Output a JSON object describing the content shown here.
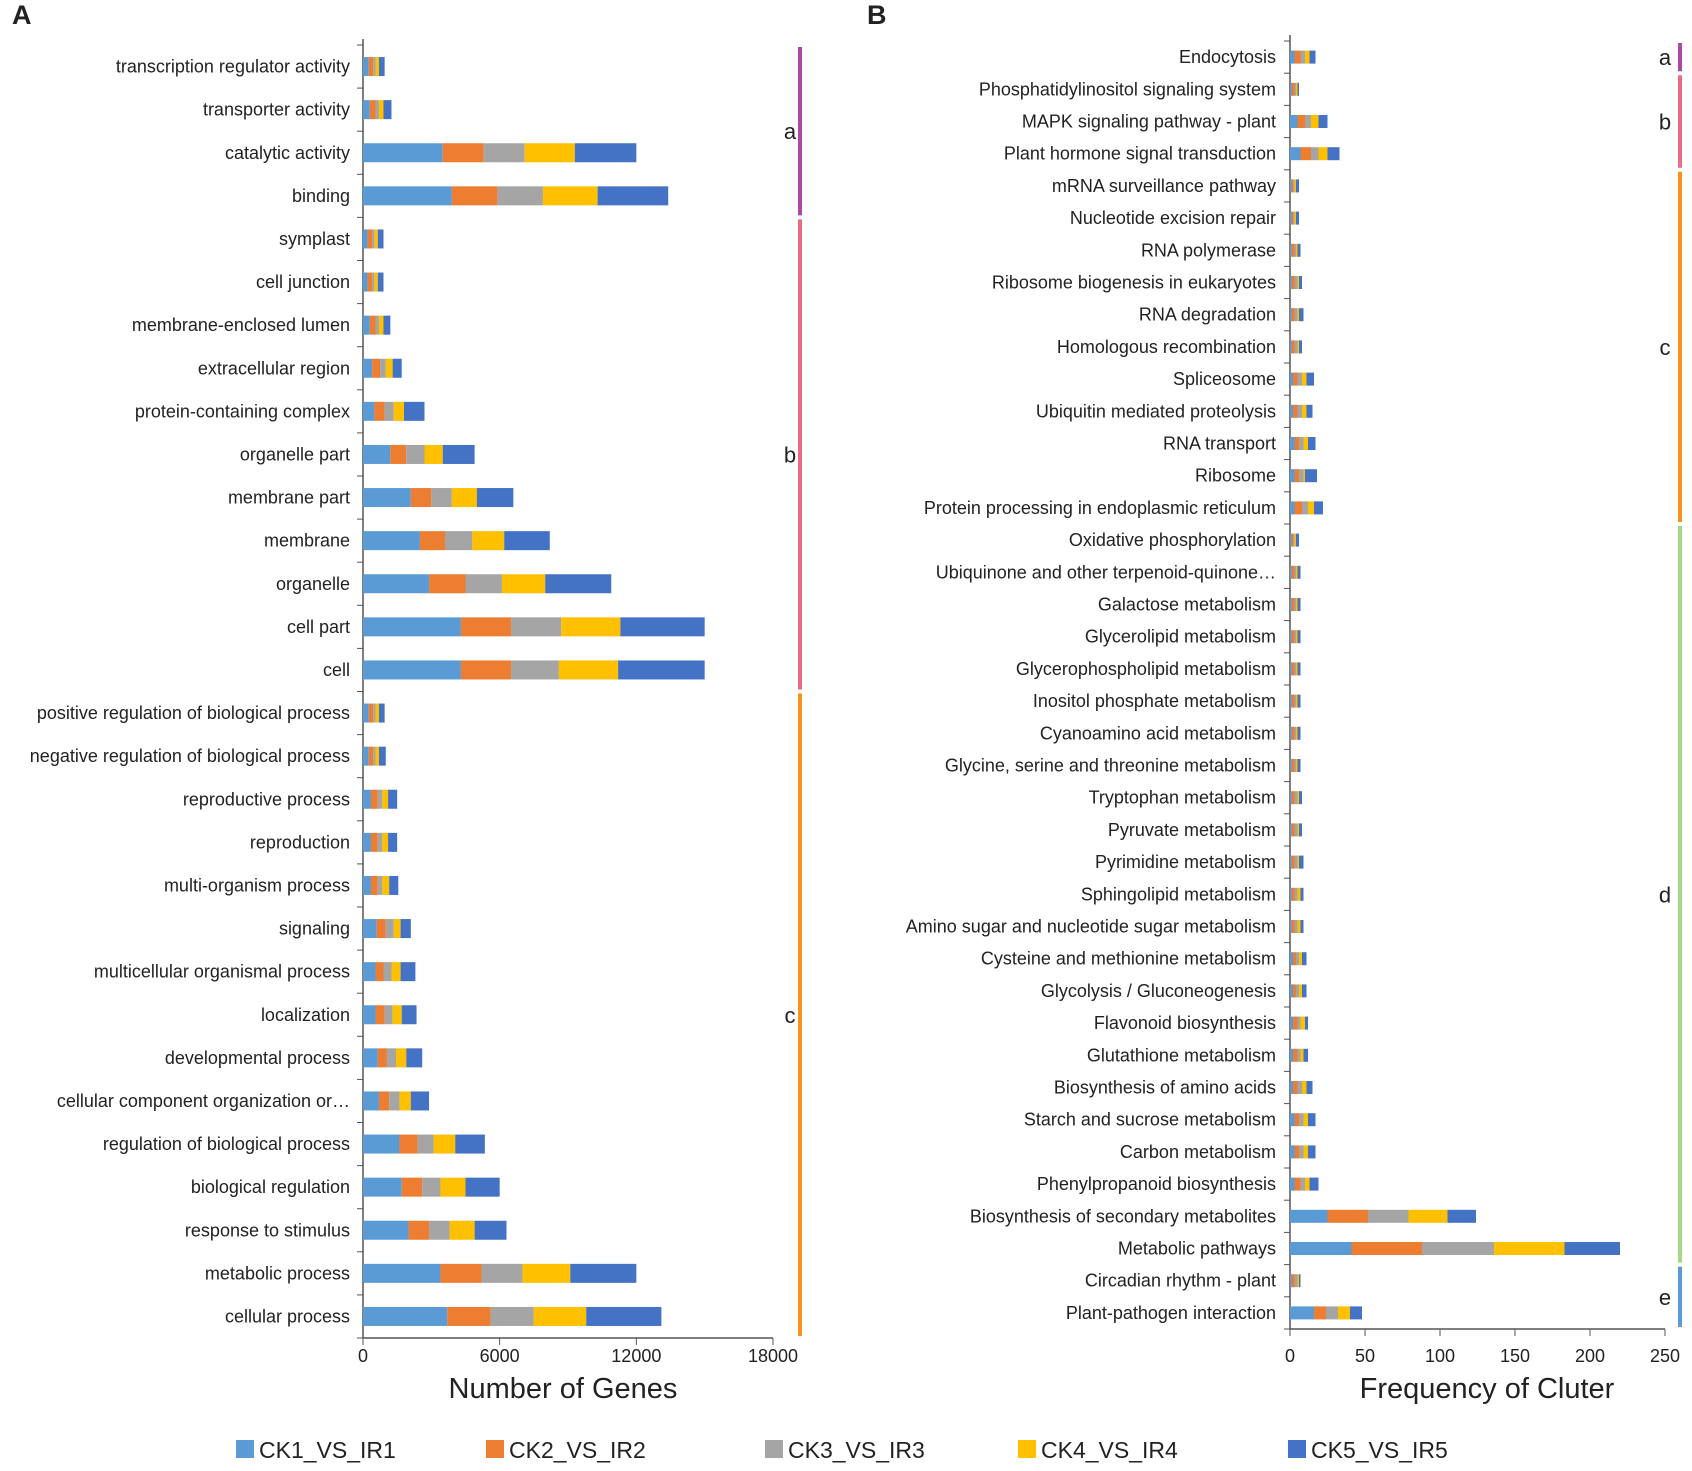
{
  "legend": [
    {
      "name": "CK1_VS_IR1",
      "color": "#5B9BD5"
    },
    {
      "name": "CK2_VS_IR2",
      "color": "#ED7D31"
    },
    {
      "name": "CK3_VS_IR3",
      "color": "#A5A5A5"
    },
    {
      "name": "CK4_VS_IR4",
      "color": "#FFC000"
    },
    {
      "name": "CK5_VS_IR5",
      "color": "#4472C4"
    }
  ],
  "chart_data": [
    {
      "panel": "A",
      "type": "bar",
      "orientation": "horizontal",
      "stacked": true,
      "xlabel": "Number of Genes",
      "xlim": [
        0,
        18000
      ],
      "xticks": [
        "0",
        "6000",
        "12000",
        "18000"
      ],
      "categories": [
        "transcription regulator activity",
        "transporter activity",
        "catalytic activity",
        "binding",
        "symplast",
        "cell junction",
        "membrane-enclosed lumen",
        "extracellular region",
        "protein-containing complex",
        "organelle part",
        "membrane part",
        "membrane",
        "organelle",
        "cell part",
        "cell",
        "positive regulation of biological process",
        "negative regulation of biological process",
        "reproductive process",
        "reproduction",
        "multi-organism process",
        "signaling",
        "multicellular organismal process",
        "localization",
        "developmental process",
        "cellular component organization or…",
        "regulation of biological process",
        "biological regulation",
        "response to stimulus",
        "metabolic process",
        "cellular process"
      ],
      "series": [
        {
          "name": "CK1_VS_IR1",
          "color": "#5B9BD5",
          "values": [
            250,
            300,
            3500,
            3900,
            200,
            200,
            300,
            400,
            500,
            1200,
            2100,
            2500,
            2900,
            4300,
            4300,
            250,
            250,
            350,
            350,
            350,
            600,
            550,
            550,
            650,
            700,
            1600,
            1700,
            2000,
            3400,
            3700
          ]
        },
        {
          "name": "CK2_VS_IR2",
          "color": "#ED7D31",
          "values": [
            200,
            250,
            1800,
            2000,
            200,
            200,
            250,
            350,
            450,
            700,
            900,
            1100,
            1600,
            2200,
            2200,
            200,
            200,
            300,
            300,
            300,
            400,
            350,
            400,
            400,
            450,
            800,
            900,
            900,
            1800,
            1900
          ]
        },
        {
          "name": "CK3_VS_IR3",
          "color": "#A5A5A5",
          "values": [
            100,
            150,
            1800,
            2000,
            100,
            100,
            150,
            250,
            400,
            800,
            900,
            1200,
            1600,
            2200,
            2100,
            100,
            100,
            200,
            200,
            200,
            350,
            350,
            350,
            400,
            450,
            700,
            800,
            900,
            1800,
            1900
          ]
        },
        {
          "name": "CK4_VS_IR4",
          "color": "#FFC000",
          "values": [
            150,
            200,
            2200,
            2400,
            150,
            150,
            200,
            300,
            450,
            800,
            1100,
            1400,
            1900,
            2600,
            2600,
            150,
            150,
            250,
            250,
            300,
            300,
            400,
            400,
            450,
            500,
            950,
            1100,
            1100,
            2100,
            2300
          ]
        },
        {
          "name": "CK5_VS_IR5",
          "color": "#4472C4",
          "values": [
            250,
            350,
            2700,
            3100,
            250,
            250,
            300,
            400,
            900,
            1400,
            1600,
            2000,
            2900,
            3700,
            3800,
            250,
            300,
            400,
            400,
            400,
            450,
            650,
            650,
            700,
            800,
            1300,
            1500,
            1400,
            2900,
            3300
          ]
        }
      ],
      "groups": [
        {
          "label": "a",
          "color": "#A94AA6",
          "from": 0,
          "to": 3
        },
        {
          "label": "b",
          "color": "#EC6A82",
          "from": 4,
          "to": 14
        },
        {
          "label": "c",
          "color": "#F7941D",
          "from": 15,
          "to": 29
        }
      ]
    },
    {
      "panel": "B",
      "type": "bar",
      "orientation": "horizontal",
      "stacked": true,
      "xlabel": "Frequency of Cluter",
      "xlim": [
        0,
        250
      ],
      "xticks": [
        "0",
        "50",
        "100",
        "150",
        "200",
        "250"
      ],
      "categories": [
        "Endocytosis",
        "Phosphatidylinositol signaling system",
        "MAPK signaling pathway - plant",
        "Plant hormone signal transduction",
        "mRNA surveillance pathway",
        "Nucleotide excision repair",
        "RNA polymerase",
        "Ribosome biogenesis in eukaryotes",
        "RNA degradation",
        "Homologous recombination",
        "Spliceosome",
        "Ubiquitin mediated proteolysis",
        "RNA transport",
        "Ribosome",
        "Protein processing in endoplasmic reticulum",
        "Oxidative phosphorylation",
        "Ubiquinone and other terpenoid-quinone…",
        "Galactose metabolism",
        "Glycerolipid metabolism",
        "Glycerophospholipid metabolism",
        "Inositol phosphate metabolism",
        "Cyanoamino acid metabolism",
        "Glycine, serine and threonine metabolism",
        "Tryptophan metabolism",
        "Pyruvate metabolism",
        "Pyrimidine metabolism",
        "Sphingolipid metabolism",
        "Amino sugar and nucleotide sugar metabolism",
        "Cysteine and methionine metabolism",
        "Glycolysis / Gluconeogenesis",
        "Flavonoid biosynthesis",
        "Glutathione metabolism",
        "Biosynthesis of amino acids",
        "Starch and sucrose metabolism",
        "Carbon metabolism",
        "Phenylpropanoid biosynthesis",
        "Biosynthesis of secondary metabolites",
        "Metabolic pathways",
        "Circadian rhythm - plant",
        "Plant-pathogen interaction"
      ],
      "series": [
        {
          "name": "CK1_VS_IR1",
          "color": "#5B9BD5",
          "values": [
            3,
            1,
            5,
            7,
            1,
            1,
            1,
            1,
            1,
            1,
            2,
            2,
            3,
            3,
            3,
            1,
            1,
            1,
            1,
            1,
            1,
            1,
            1,
            1,
            1,
            1,
            1,
            1,
            2,
            2,
            2,
            2,
            2,
            3,
            3,
            3,
            25,
            41,
            1,
            16
          ]
        },
        {
          "name": "CK2_VS_IR2",
          "color": "#ED7D31",
          "values": [
            4,
            2,
            5,
            7,
            1,
            1,
            2,
            2,
            2,
            2,
            3,
            3,
            3,
            3,
            5,
            1,
            2,
            2,
            2,
            2,
            2,
            2,
            2,
            2,
            2,
            2,
            2,
            2,
            2,
            2,
            3,
            3,
            3,
            3,
            3,
            4,
            27,
            47,
            2,
            8
          ]
        },
        {
          "name": "CK3_VS_IR3",
          "color": "#A5A5A5",
          "values": [
            3,
            1,
            4,
            5,
            1,
            1,
            1,
            2,
            2,
            2,
            3,
            3,
            3,
            3,
            4,
            1,
            1,
            1,
            1,
            1,
            1,
            1,
            1,
            2,
            2,
            2,
            2,
            2,
            2,
            2,
            2,
            2,
            3,
            3,
            3,
            3,
            27,
            48,
            2,
            8
          ]
        },
        {
          "name": "CK4_VS_IR4",
          "color": "#FFC000",
          "values": [
            3,
            1,
            5,
            6,
            1,
            1,
            1,
            1,
            1,
            1,
            3,
            3,
            3,
            1,
            4,
            1,
            1,
            1,
            1,
            1,
            1,
            1,
            1,
            1,
            1,
            1,
            2,
            2,
            2,
            2,
            3,
            2,
            3,
            3,
            3,
            3,
            26,
            47,
            1,
            8
          ]
        },
        {
          "name": "CK5_VS_IR5",
          "color": "#4472C4",
          "values": [
            4,
            1,
            6,
            8,
            2,
            2,
            2,
            2,
            3,
            2,
            5,
            4,
            5,
            8,
            6,
            2,
            2,
            2,
            2,
            2,
            2,
            2,
            2,
            2,
            2,
            3,
            2,
            2,
            3,
            3,
            2,
            3,
            4,
            5,
            5,
            6,
            19,
            37,
            1,
            8
          ]
        }
      ],
      "groups": [
        {
          "label": "a",
          "color": "#A94AA6",
          "from": 0,
          "to": 0
        },
        {
          "label": "b",
          "color": "#EC6A82",
          "from": 1,
          "to": 3
        },
        {
          "label": "c",
          "color": "#F7941D",
          "from": 4,
          "to": 14
        },
        {
          "label": "d",
          "color": "#A6D785",
          "from": 15,
          "to": 37
        },
        {
          "label": "e",
          "color": "#5B9BD5",
          "from": 38,
          "to": 39
        }
      ]
    }
  ]
}
